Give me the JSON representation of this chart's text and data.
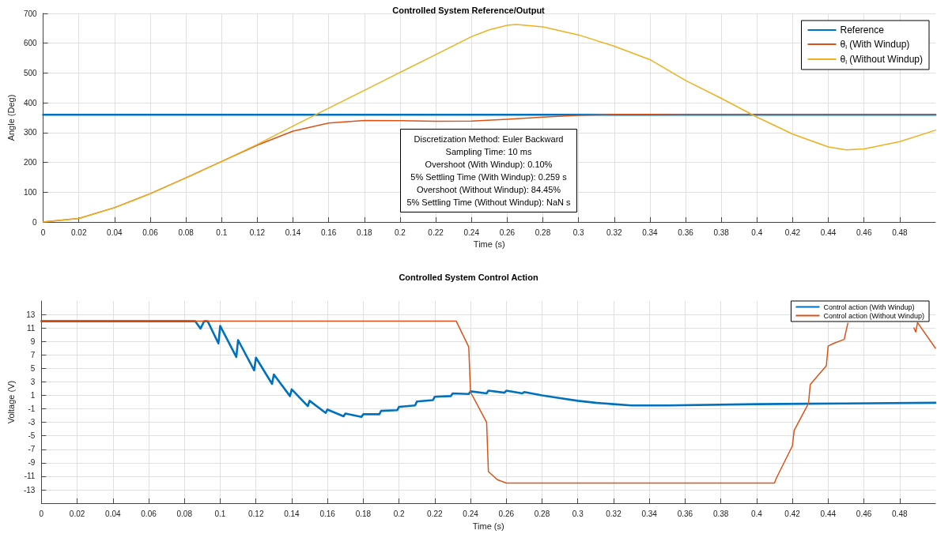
{
  "chart_data": [
    {
      "type": "line",
      "title": "Controlled System Reference/Output",
      "xlabel": "Time (s)",
      "ylabel": "Angle (Deg)",
      "xlim": [
        0,
        0.5
      ],
      "xticks": [
        0,
        0.02,
        0.04,
        0.06,
        0.08,
        0.1,
        0.12,
        0.14,
        0.16,
        0.18,
        0.2,
        0.22,
        0.24,
        0.26,
        0.28,
        0.3,
        0.32,
        0.34,
        0.36,
        0.38,
        0.4,
        0.42,
        0.44,
        0.46,
        0.48
      ],
      "ylim": [
        0,
        700
      ],
      "yticks": [
        0,
        100,
        200,
        300,
        400,
        500,
        600,
        700
      ],
      "grid": true,
      "legend": "top right",
      "marker": "none",
      "line_style": "solid",
      "annotations": [
        "Discretization Method: Euler Backward",
        "Sampling Time: 10 ms",
        "Overshoot (With Windup): 0.10%",
        "5% Settling Time (With Windup): 0.259 s",
        "Overshoot (Without Windup): 84.45%",
        "5% Settling Time (Without Windup): NaN s"
      ],
      "series": [
        {
          "name": "Reference",
          "color": "#0072bd",
          "x": [
            0,
            0.5
          ],
          "values": [
            360,
            360
          ]
        },
        {
          "name": "θ$_{l}$ (With Windup)",
          "color": "#d95319",
          "x": [
            0,
            0.02,
            0.04,
            0.06,
            0.08,
            0.1,
            0.12,
            0.14,
            0.16,
            0.18,
            0.2,
            0.22,
            0.24,
            0.26,
            0.28,
            0.3,
            0.32,
            0.34,
            0.36,
            0.4,
            0.5
          ],
          "values": [
            0,
            12,
            48,
            95,
            148,
            203,
            258,
            305,
            332,
            341,
            340,
            338,
            339,
            345,
            352,
            358,
            361,
            361,
            360,
            360,
            360
          ]
        },
        {
          "name": "θ$_{l}$ (Without Windup)",
          "color": "#edb120",
          "x": [
            0,
            0.02,
            0.04,
            0.06,
            0.08,
            0.1,
            0.12,
            0.14,
            0.16,
            0.18,
            0.2,
            0.22,
            0.24,
            0.25,
            0.26,
            0.265,
            0.28,
            0.3,
            0.32,
            0.34,
            0.36,
            0.38,
            0.4,
            0.42,
            0.44,
            0.45,
            0.46,
            0.48,
            0.5
          ],
          "values": [
            0,
            12,
            48,
            95,
            148,
            203,
            260,
            322,
            382,
            442,
            502,
            562,
            622,
            645,
            660,
            663,
            655,
            628,
            590,
            545,
            475,
            415,
            352,
            295,
            252,
            242,
            245,
            270,
            308
          ]
        }
      ]
    },
    {
      "type": "line",
      "title": "Controlled System Control Action",
      "xlabel": "Time (s)",
      "ylabel": "Voltage (V)",
      "xlim": [
        0,
        0.5
      ],
      "xticks": [
        0,
        0.02,
        0.04,
        0.06,
        0.08,
        0.1,
        0.12,
        0.14,
        0.16,
        0.18,
        0.2,
        0.22,
        0.24,
        0.26,
        0.28,
        0.3,
        0.32,
        0.34,
        0.36,
        0.38,
        0.4,
        0.42,
        0.44,
        0.46,
        0.48
      ],
      "ylim": [
        -15,
        15
      ],
      "yticks": [
        -13,
        -11,
        -9,
        -7,
        -5,
        -3,
        -1,
        1,
        3,
        5,
        7,
        9,
        11,
        13
      ],
      "grid": true,
      "legend": "top right",
      "marker": "none",
      "line_style": "solid",
      "series": [
        {
          "name": "Control action (With Windup)",
          "color": "#0072bd",
          "x": [
            0,
            0.086,
            0.089,
            0.091,
            0.093,
            0.099,
            0.1,
            0.109,
            0.11,
            0.119,
            0.12,
            0.129,
            0.13,
            0.139,
            0.14,
            0.149,
            0.15,
            0.159,
            0.16,
            0.169,
            0.17,
            0.179,
            0.18,
            0.189,
            0.19,
            0.199,
            0.2,
            0.209,
            0.21,
            0.219,
            0.22,
            0.229,
            0.23,
            0.239,
            0.24,
            0.249,
            0.25,
            0.259,
            0.26,
            0.269,
            0.27,
            0.28,
            0.29,
            0.3,
            0.31,
            0.32,
            0.33,
            0.35,
            0.4,
            0.45,
            0.5
          ],
          "values": [
            12,
            12,
            10.9,
            12,
            12,
            8.7,
            11.3,
            6.7,
            9.2,
            4.7,
            6.6,
            2.7,
            4.1,
            0.9,
            1.9,
            -0.6,
            0.2,
            -1.6,
            -1.1,
            -2.1,
            -1.7,
            -2.2,
            -1.8,
            -1.8,
            -1.3,
            -1.2,
            -0.7,
            -0.5,
            0.1,
            0.3,
            0.8,
            0.9,
            1.3,
            1.2,
            1.6,
            1.3,
            1.7,
            1.4,
            1.7,
            1.3,
            1.5,
            1.0,
            0.6,
            0.2,
            -0.1,
            -0.3,
            -0.5,
            -0.5,
            -0.3,
            -0.2,
            -0.1
          ]
        },
        {
          "name": "Control action (Without Windup)",
          "color": "#d95319",
          "x": [
            0,
            0.232,
            0.239,
            0.24,
            0.245,
            0.249,
            0.25,
            0.255,
            0.26,
            0.41,
            0.411,
            0.42,
            0.421,
            0.429,
            0.43,
            0.439,
            0.44,
            0.443,
            0.449,
            0.451,
            0.47,
            0.488,
            0.489,
            0.49,
            0.5
          ],
          "values": [
            12,
            12,
            8.2,
            1.5,
            -1.0,
            -3.0,
            -10.3,
            -11.5,
            -12,
            -12,
            -11.3,
            -6.5,
            -4.2,
            -0.2,
            2.6,
            5.4,
            8.3,
            8.7,
            9.3,
            11.7,
            null,
            11.0,
            10.4,
            11.8,
            8.0
          ]
        }
      ]
    }
  ]
}
